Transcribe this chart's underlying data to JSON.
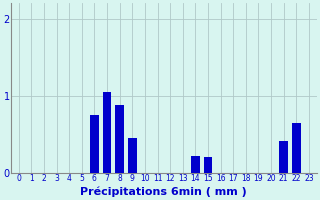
{
  "title": "",
  "xlabel": "Précipitations 6min ( mm )",
  "categories": [
    0,
    1,
    2,
    3,
    4,
    5,
    6,
    7,
    8,
    9,
    10,
    11,
    12,
    13,
    14,
    15,
    16,
    17,
    18,
    19,
    20,
    21,
    22,
    23
  ],
  "values": [
    0,
    0,
    0,
    0,
    0,
    0,
    0.75,
    1.05,
    0.88,
    0.45,
    0.0,
    0.0,
    0.0,
    0.0,
    0.22,
    0.2,
    0,
    0,
    0,
    0,
    0,
    0.42,
    0.65,
    0
  ],
  "bar_color": "#0000cc",
  "bg_color": "#d8f5f0",
  "grid_color": "#b0c8c8",
  "axis_color": "#888888",
  "ylim": [
    0,
    2.2
  ],
  "yticks": [
    0,
    1,
    2
  ],
  "text_color": "#0000cc",
  "xlabel_fontsize": 8,
  "tick_fontsize": 5.5,
  "ytick_fontsize": 7,
  "bar_width": 0.7
}
